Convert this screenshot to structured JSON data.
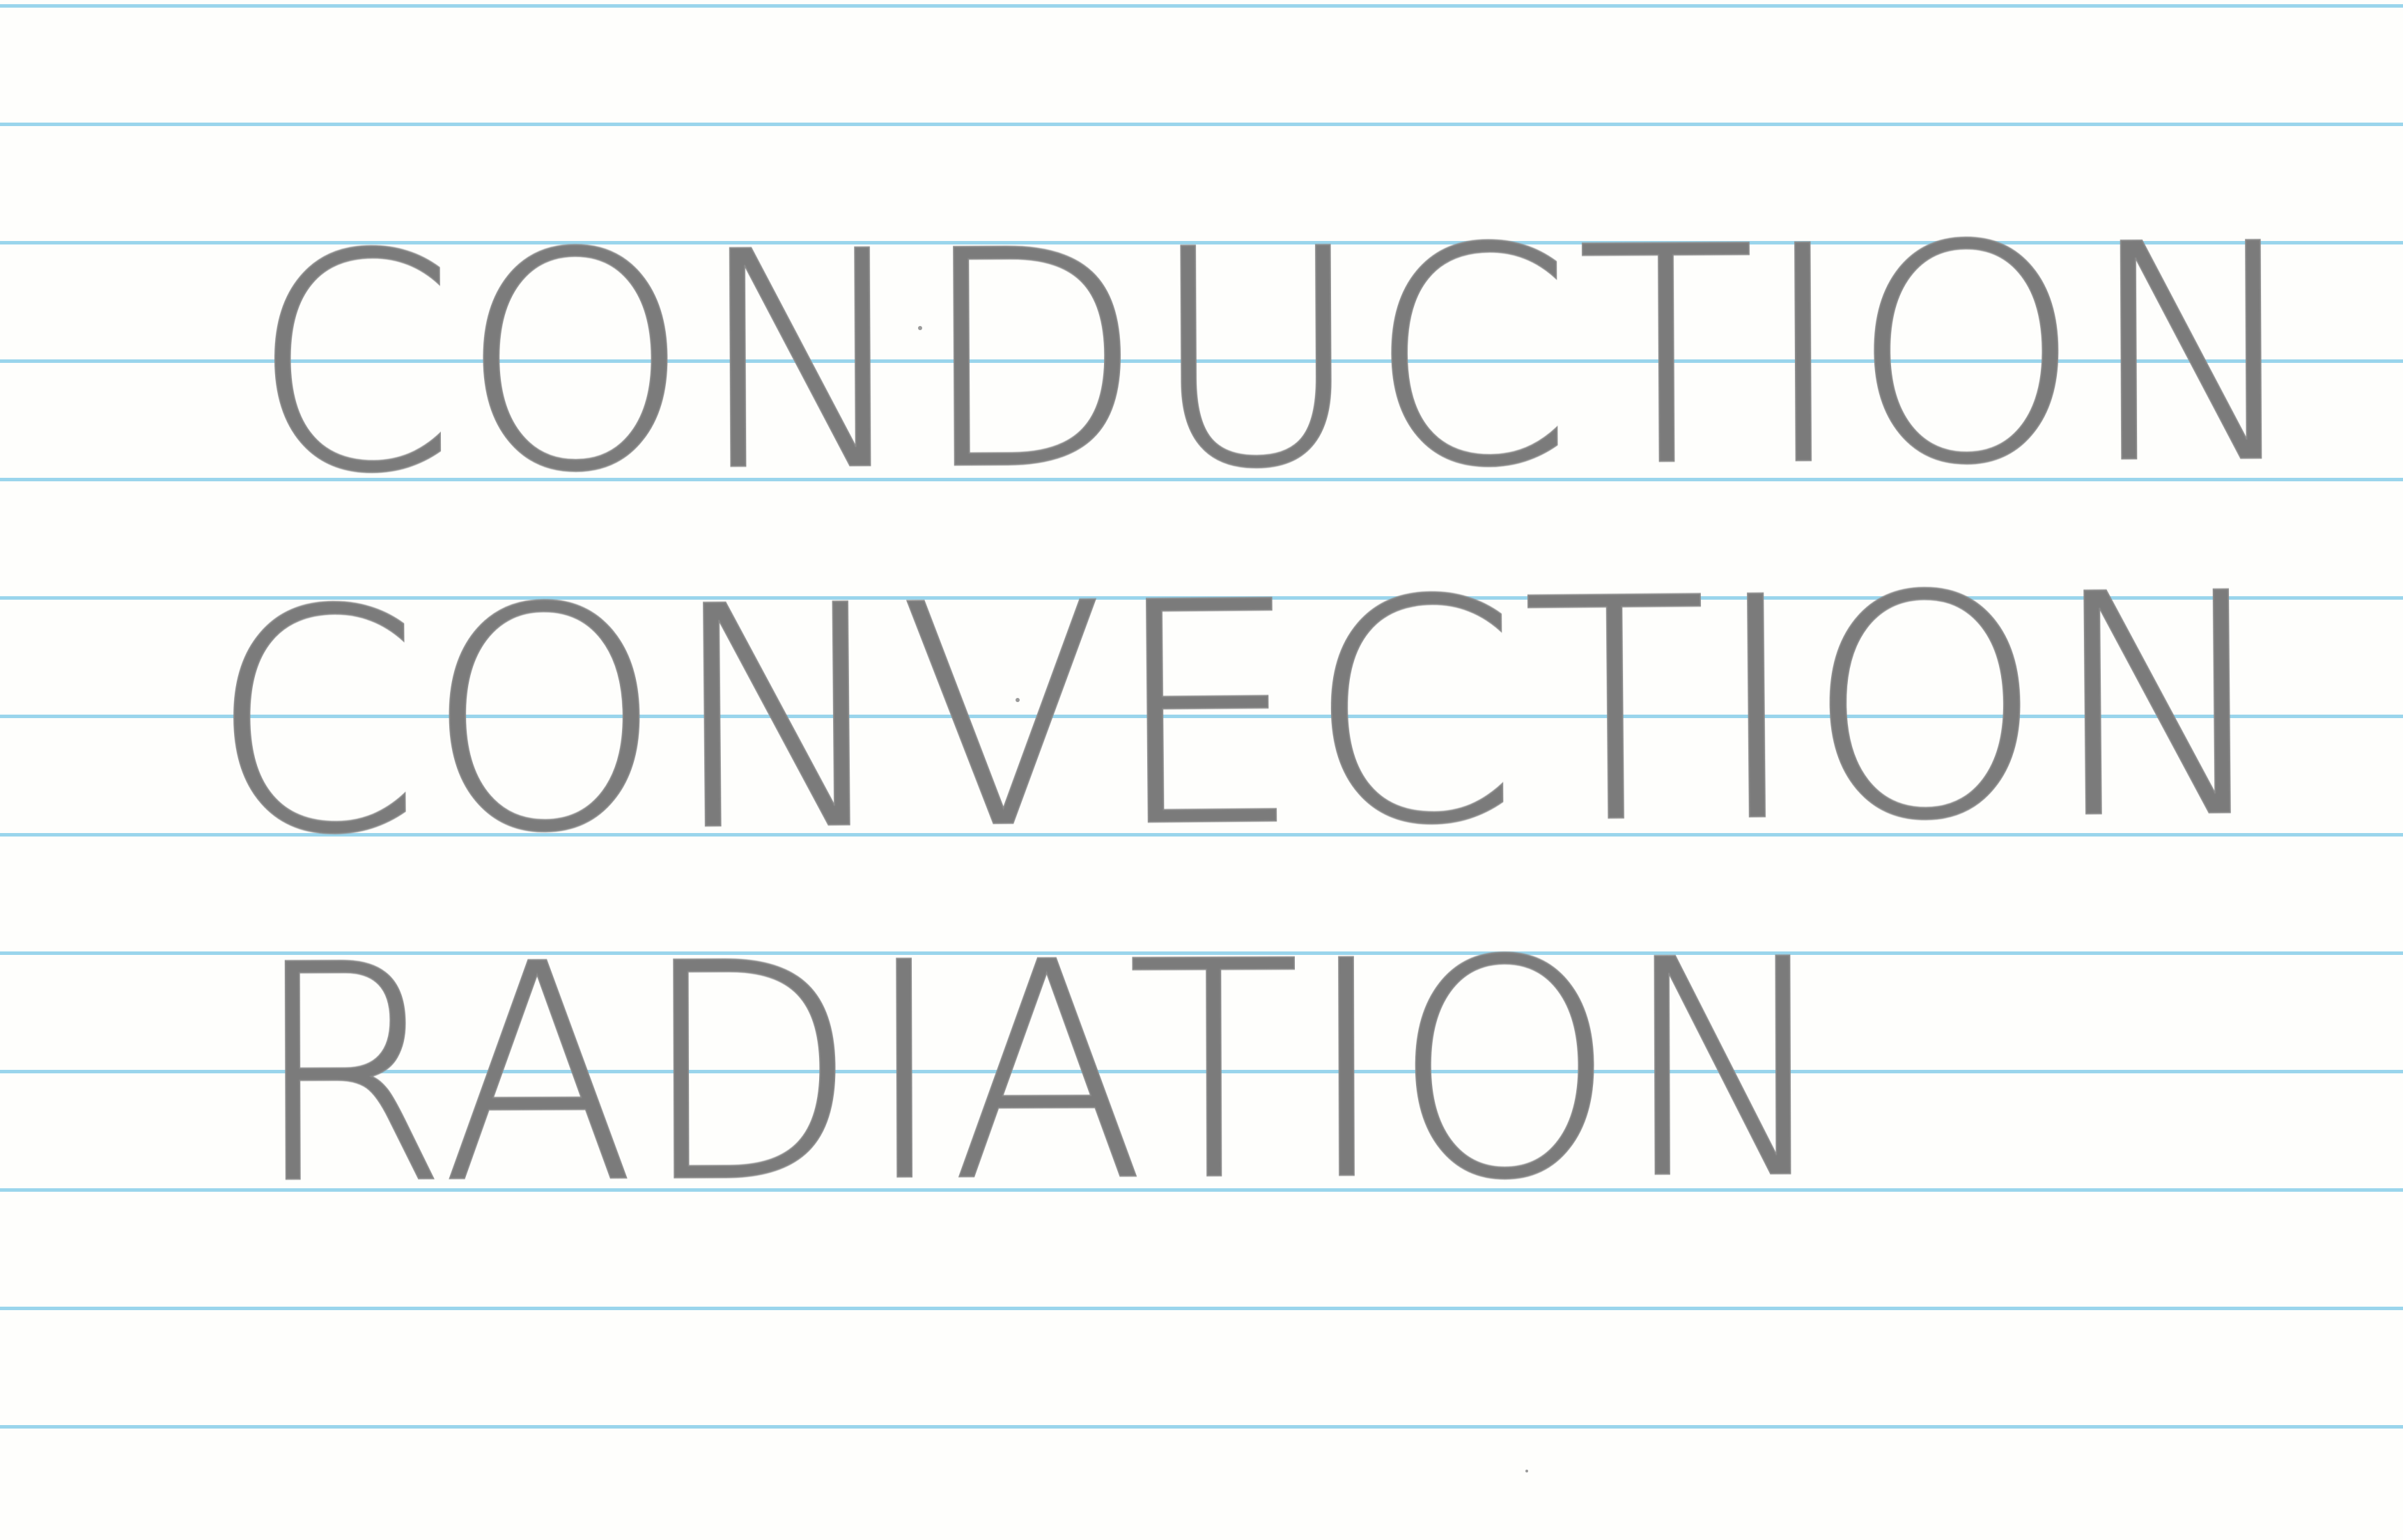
{
  "card": {
    "lines": [
      "CONDUCTION",
      "CONVECTION",
      "RADIATION"
    ]
  },
  "colors": {
    "paper": "#fefefc",
    "rule_line": "#8fd0ea",
    "pencil": "#7b7b7b"
  }
}
